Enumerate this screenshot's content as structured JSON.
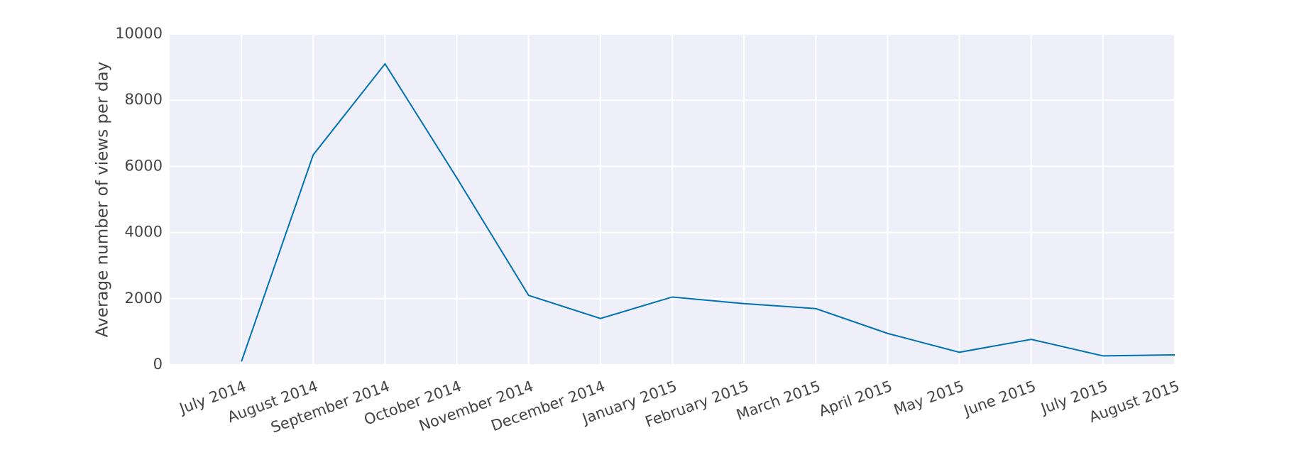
{
  "chart_data": {
    "type": "line",
    "y_label": "Average number of views per day",
    "categories": [
      "July 2014",
      "August 2014",
      "September 2014",
      "October 2014",
      "November 2014",
      "December 2014",
      "January 2015",
      "February 2015",
      "March 2015",
      "April 2015",
      "May 2015",
      "June 2015",
      "July 2015",
      "August 2015"
    ],
    "series": [
      {
        "name": "views",
        "color": "#0072b2",
        "values": [
          100,
          6350,
          9100,
          5650,
          2100,
          1400,
          2050,
          1850,
          1700,
          950,
          380,
          770,
          270,
          300
        ]
      }
    ],
    "ylim": [
      0,
      10000
    ],
    "yticks": [
      0,
      2000,
      4000,
      6000,
      8000,
      10000
    ],
    "grid": true
  }
}
